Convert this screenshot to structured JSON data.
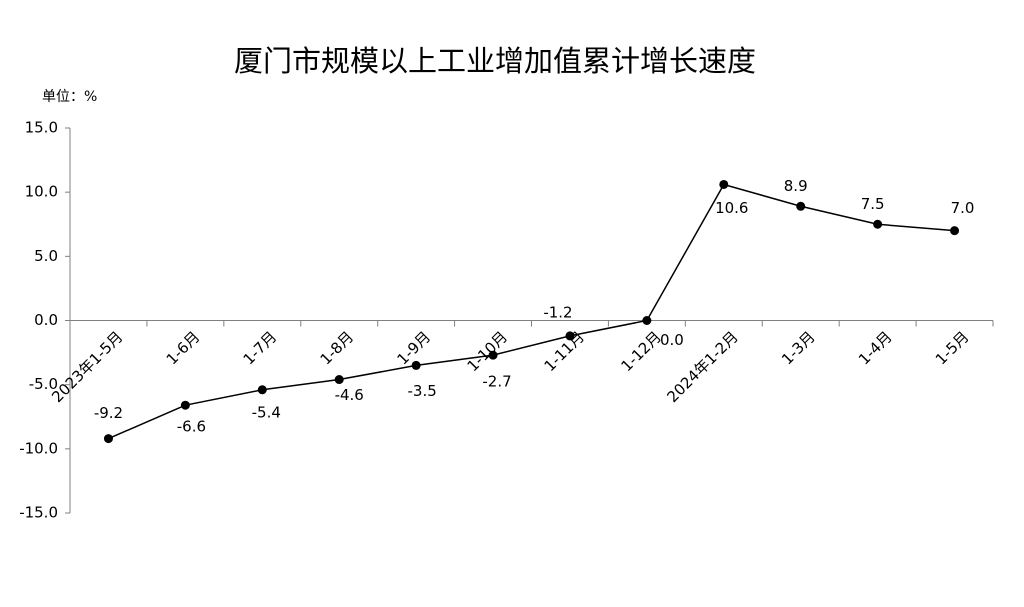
{
  "chart_data": {
    "type": "line",
    "title": "厦门市规模以上工业增加值累计增长速度",
    "unit_label": "单位：%",
    "categories": [
      "2023年1-5月",
      "1-6月",
      "1-7月",
      "1-8月",
      "1-9月",
      "1-10月",
      "1-11月",
      "1-12月",
      "2024年1-2月",
      "1-3月",
      "1-4月",
      "1-5月"
    ],
    "values": [
      -9.2,
      -6.6,
      -5.4,
      -4.6,
      -3.5,
      -2.7,
      -1.2,
      0,
      10.6,
      8.9,
      7.5,
      7
    ],
    "value_labels": [
      "-9.2",
      "-6.6",
      "-5.4",
      "-4.6",
      "-3.5",
      "-2.7",
      "-1.2",
      "0.0",
      "10.6",
      "8.9",
      "7.5",
      "7.0"
    ],
    "color": "#000000",
    "ylim": [
      -15,
      15
    ],
    "yticks": [
      {
        "value": -15,
        "label": "-15.0"
      },
      {
        "value": -10,
        "label": "-10.0"
      },
      {
        "value": -5,
        "label": "-5.0"
      },
      {
        "value": 0,
        "label": "0.0"
      },
      {
        "value": 5,
        "label": "5.0"
      },
      {
        "value": 10,
        "label": "10.0"
      },
      {
        "value": 15,
        "label": "15.0"
      }
    ],
    "grid": false
  }
}
